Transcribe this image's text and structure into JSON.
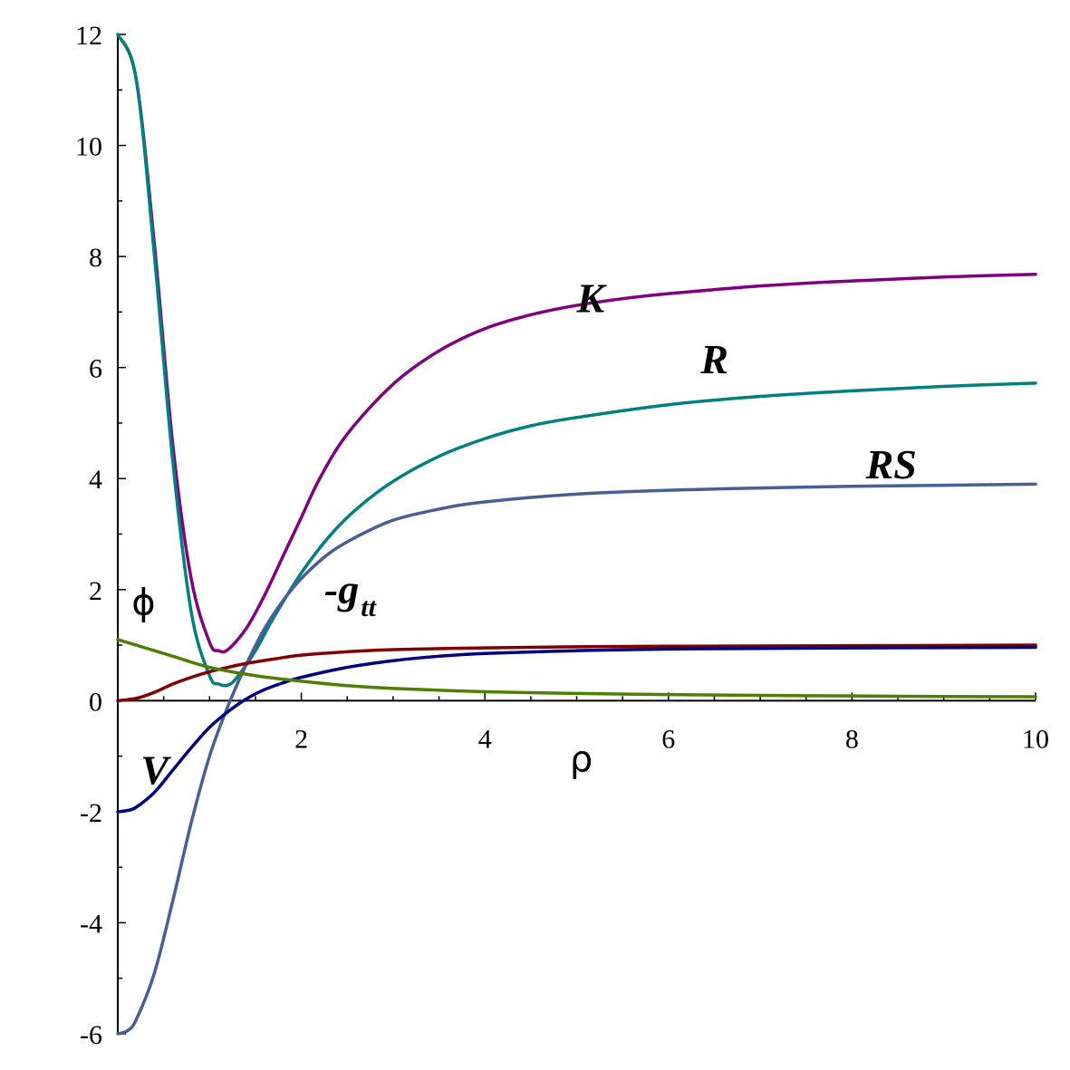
{
  "chart_data": {
    "type": "line",
    "title": "",
    "xlabel": "ρ",
    "ylabel": "",
    "xlim": [
      0,
      10
    ],
    "ylim": [
      -6,
      12
    ],
    "grid": false,
    "x_ticks": [
      {
        "value": 2,
        "label": "2"
      },
      {
        "value": 4,
        "label": "4"
      },
      {
        "value": 6,
        "label": "6"
      },
      {
        "value": 8,
        "label": "8"
      },
      {
        "value": 10,
        "label": "10"
      }
    ],
    "y_ticks": [
      {
        "value": -6,
        "label": "-6"
      },
      {
        "value": -4,
        "label": "-4"
      },
      {
        "value": -2,
        "label": "-2"
      },
      {
        "value": 0,
        "label": "0"
      },
      {
        "value": 2,
        "label": "2"
      },
      {
        "value": 4,
        "label": "4"
      },
      {
        "value": 6,
        "label": "6"
      },
      {
        "value": 8,
        "label": "8"
      },
      {
        "value": 10,
        "label": "10"
      },
      {
        "value": 12,
        "label": "12"
      }
    ],
    "series": [
      {
        "id": "K",
        "name": "K",
        "color": "#800080",
        "x": [
          0,
          0.2,
          0.4,
          0.6,
          0.8,
          1.0,
          1.1,
          1.2,
          1.4,
          1.6,
          1.8,
          2.0,
          2.2,
          2.5,
          3.0,
          3.5,
          4.0,
          4.5,
          5.0,
          5.5,
          6.0,
          7.0,
          8.0,
          9.0,
          10.0
        ],
        "y": [
          12.0,
          11.2,
          8.2,
          4.6,
          2.2,
          1.05,
          0.9,
          0.92,
          1.3,
          1.9,
          2.6,
          3.3,
          4.0,
          4.8,
          5.7,
          6.3,
          6.7,
          6.95,
          7.12,
          7.24,
          7.33,
          7.47,
          7.56,
          7.63,
          7.68
        ]
      },
      {
        "id": "R",
        "name": "R",
        "color": "#008080",
        "x": [
          0,
          0.2,
          0.4,
          0.6,
          0.8,
          1.0,
          1.1,
          1.2,
          1.3,
          1.5,
          1.7,
          2.0,
          2.3,
          2.6,
          3.0,
          3.5,
          4.0,
          4.5,
          5.0,
          6.0,
          7.0,
          8.0,
          9.0,
          10.0
        ],
        "y": [
          12.0,
          11.2,
          8.0,
          4.3,
          1.6,
          0.45,
          0.3,
          0.28,
          0.42,
          0.9,
          1.5,
          2.3,
          2.95,
          3.45,
          3.95,
          4.4,
          4.72,
          4.95,
          5.1,
          5.33,
          5.48,
          5.58,
          5.66,
          5.72
        ]
      },
      {
        "id": "RS",
        "name": "RS",
        "color": "#4a5e96",
        "x": [
          0,
          0.1,
          0.2,
          0.4,
          0.6,
          0.8,
          1.0,
          1.2,
          1.4,
          1.6,
          1.8,
          2.0,
          2.3,
          2.6,
          3.0,
          3.5,
          4.0,
          5.0,
          6.0,
          7.0,
          8.0,
          9.0,
          10.0
        ],
        "y": [
          -6.0,
          -5.95,
          -5.75,
          -4.9,
          -3.6,
          -2.2,
          -1.0,
          -0.1,
          0.65,
          1.3,
          1.8,
          2.2,
          2.65,
          2.95,
          3.25,
          3.45,
          3.58,
          3.72,
          3.79,
          3.83,
          3.86,
          3.88,
          3.9
        ]
      },
      {
        "id": "gtt",
        "name": "-g",
        "color": "#800000",
        "x": [
          0,
          0.2,
          0.4,
          0.6,
          0.8,
          1.0,
          1.2,
          1.4,
          1.7,
          2.0,
          2.5,
          3.0,
          4.0,
          5.0,
          6.0,
          8.0,
          10.0
        ],
        "y": [
          0.0,
          0.04,
          0.15,
          0.3,
          0.42,
          0.52,
          0.6,
          0.67,
          0.75,
          0.82,
          0.88,
          0.92,
          0.95,
          0.97,
          0.98,
          0.99,
          1.0
        ]
      },
      {
        "id": "V",
        "name": "V",
        "color": "#000080",
        "x": [
          0,
          0.1,
          0.2,
          0.4,
          0.6,
          0.8,
          1.0,
          1.2,
          1.4,
          1.6,
          1.8,
          2.0,
          2.5,
          3.0,
          3.5,
          4.0,
          5.0,
          6.0,
          7.0,
          8.0,
          10.0
        ],
        "y": [
          -2.0,
          -1.98,
          -1.92,
          -1.65,
          -1.25,
          -0.85,
          -0.48,
          -0.2,
          0.03,
          0.2,
          0.32,
          0.42,
          0.6,
          0.72,
          0.8,
          0.85,
          0.9,
          0.93,
          0.94,
          0.95,
          0.96
        ]
      },
      {
        "id": "phi",
        "name": "ϕ",
        "color": "#4e7f00",
        "x": [
          0,
          0.3,
          0.6,
          1.0,
          1.5,
          2.0,
          2.5,
          3.0,
          4.0,
          5.0,
          6.0,
          7.0,
          8.0,
          9.0,
          10.0
        ],
        "y": [
          1.1,
          0.95,
          0.8,
          0.6,
          0.45,
          0.35,
          0.27,
          0.22,
          0.16,
          0.13,
          0.11,
          0.095,
          0.085,
          0.075,
          0.07
        ]
      }
    ],
    "annotations": [
      {
        "target": "K",
        "text": "K",
        "x": 5.0,
        "y": 7.0
      },
      {
        "target": "R",
        "text": "R",
        "x": 6.35,
        "y": 5.9
      },
      {
        "target": "RS",
        "text": "RS",
        "x": 8.15,
        "y": 4.0
      },
      {
        "target": "gtt",
        "text": "-g",
        "sub": "tt",
        "x": 2.25,
        "y": 1.75
      },
      {
        "target": "phi",
        "text": "ϕ",
        "x": 0.15,
        "y": 1.55
      },
      {
        "target": "V",
        "text": "V",
        "x": 0.25,
        "y": -1.5
      }
    ]
  }
}
